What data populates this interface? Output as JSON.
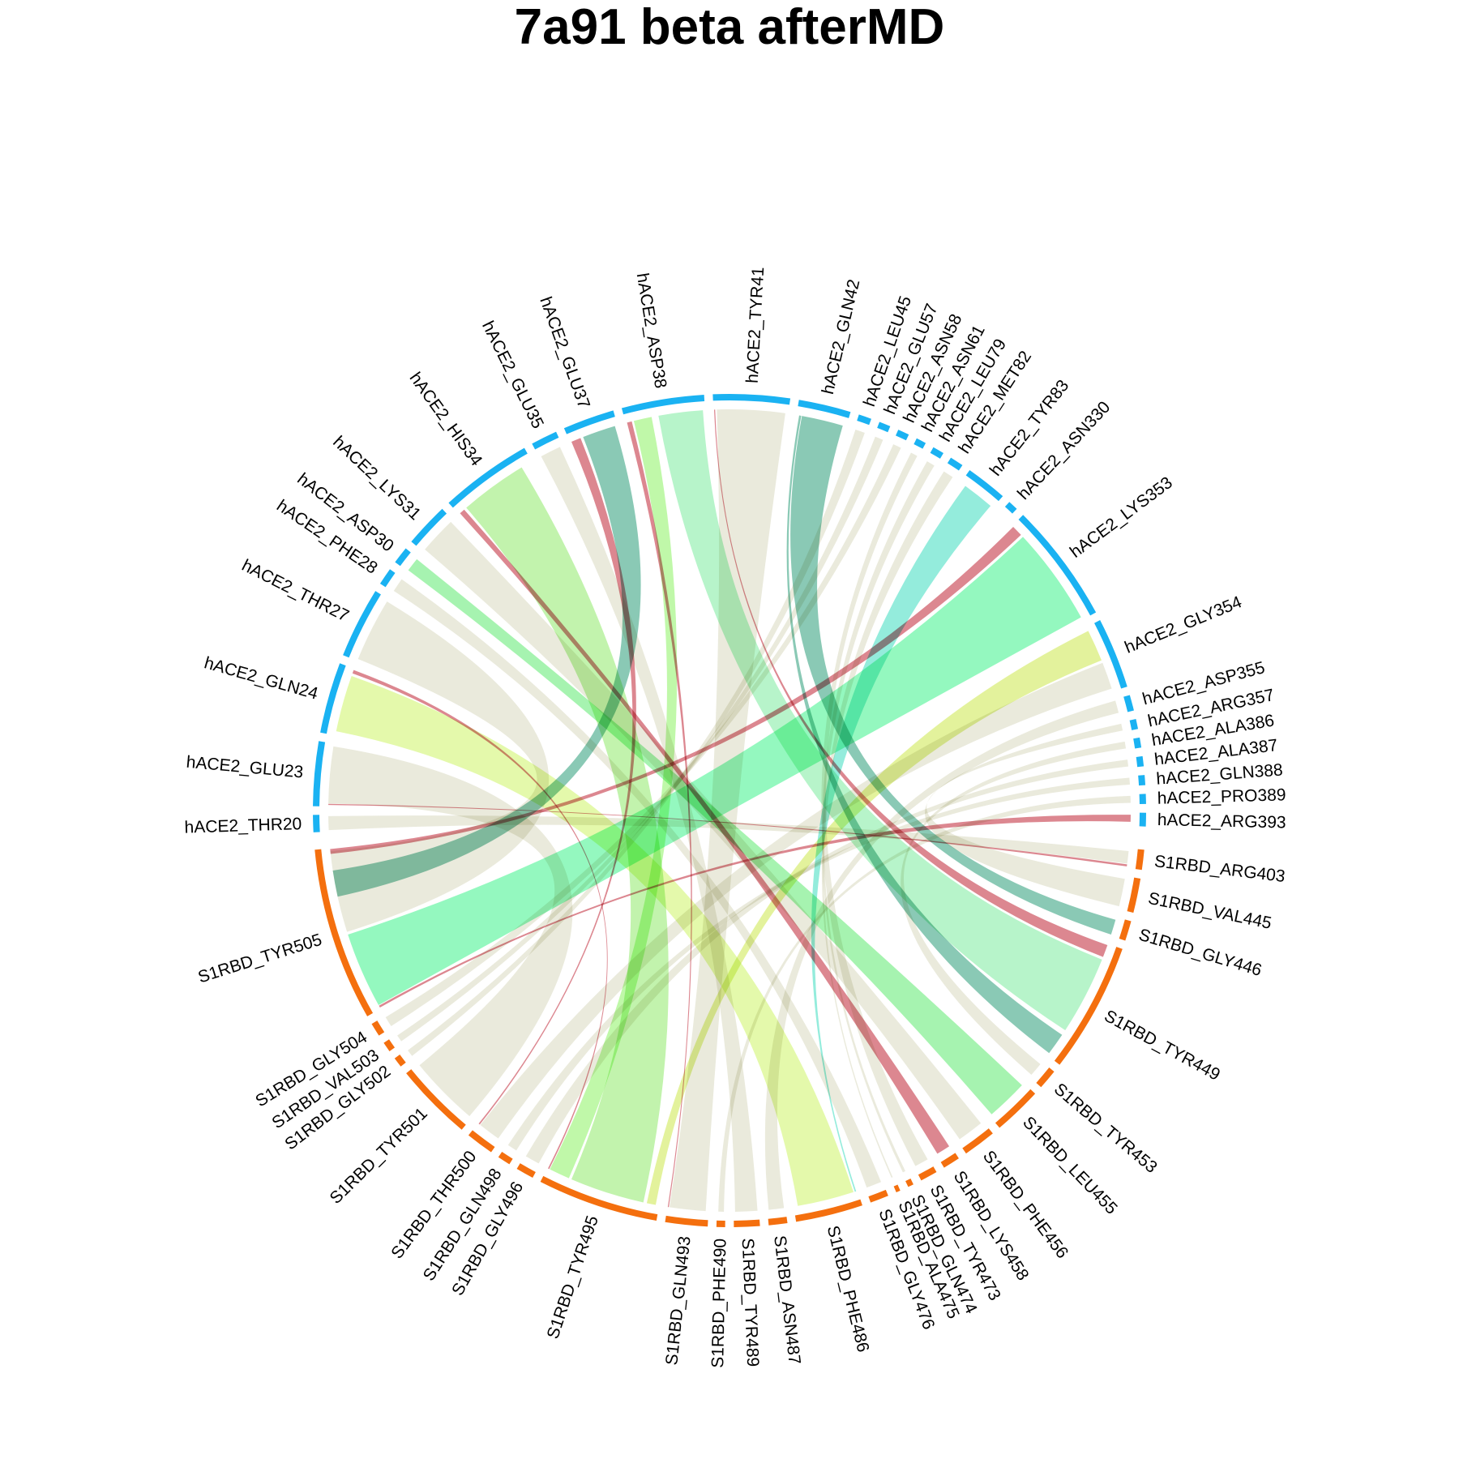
{
  "chart_data": {
    "type": "chord",
    "title": "7a91 beta afterMD",
    "group_colors": {
      "hACE2": "#1AB2F2",
      "S1RBD": "#F46F0E"
    },
    "default_link_color": "#E5E6D4",
    "nodes": [
      {
        "label": "hACE2_THR20",
        "group": "hACE2",
        "from_deg": 267.0,
        "to_deg": 269.4
      },
      {
        "label": "hACE2_GLU23",
        "group": "hACE2",
        "from_deg": 270.6,
        "to_deg": 279.6
      },
      {
        "label": "hACE2_GLN24",
        "group": "hACE2",
        "from_deg": 280.8,
        "to_deg": 290.7
      },
      {
        "label": "hACE2_THR27",
        "group": "hACE2",
        "from_deg": 291.9,
        "to_deg": 301.8
      },
      {
        "label": "hACE2_PHE28",
        "group": "hACE2",
        "from_deg": 303.0,
        "to_deg": 305.4
      },
      {
        "label": "hACE2_ASP30",
        "group": "hACE2",
        "from_deg": 306.6,
        "to_deg": 309.0
      },
      {
        "label": "hACE2_LYS31",
        "group": "hACE2",
        "from_deg": 310.2,
        "to_deg": 316.4
      },
      {
        "label": "hACE2_HIS34",
        "group": "hACE2",
        "from_deg": 317.6,
        "to_deg": 330.5
      },
      {
        "label": "hACE2_GLU35",
        "group": "hACE2",
        "from_deg": 331.7,
        "to_deg": 335.4
      },
      {
        "label": "hACE2_GLU37",
        "group": "hACE2",
        "from_deg": 336.6,
        "to_deg": 343.8
      },
      {
        "label": "hACE2_ASP38",
        "group": "hACE2",
        "from_deg": 345.0,
        "to_deg": 356.5
      },
      {
        "label": "hACE2_TYR41",
        "group": "hACE2",
        "from_deg": 357.7,
        "to_deg": 8.4
      },
      {
        "label": "hACE2_GLN42",
        "group": "hACE2",
        "from_deg": 9.6,
        "to_deg": 16.9
      },
      {
        "label": "hACE2_LEU45",
        "group": "hACE2",
        "from_deg": 18.1,
        "to_deg": 19.9
      },
      {
        "label": "hACE2_GLU57",
        "group": "hACE2",
        "from_deg": 21.1,
        "to_deg": 22.7
      },
      {
        "label": "hACE2_ASN58",
        "group": "hACE2",
        "from_deg": 23.9,
        "to_deg": 25.5
      },
      {
        "label": "hACE2_ASN61",
        "group": "hACE2",
        "from_deg": 26.7,
        "to_deg": 28.1
      },
      {
        "label": "hACE2_LEU79",
        "group": "hACE2",
        "from_deg": 29.3,
        "to_deg": 30.9
      },
      {
        "label": "hACE2_MET82",
        "group": "hACE2",
        "from_deg": 32.1,
        "to_deg": 34.0
      },
      {
        "label": "hACE2_TYR83",
        "group": "hACE2",
        "from_deg": 35.2,
        "to_deg": 41.0
      },
      {
        "label": "hACE2_ASN330",
        "group": "hACE2",
        "from_deg": 42.2,
        "to_deg": 43.6
      },
      {
        "label": "hACE2_LYS353",
        "group": "hACE2",
        "from_deg": 44.8,
        "to_deg": 61.6
      },
      {
        "label": "hACE2_GLY354",
        "group": "hACE2",
        "from_deg": 62.8,
        "to_deg": 72.7
      },
      {
        "label": "hACE2_ASP355",
        "group": "hACE2",
        "from_deg": 73.9,
        "to_deg": 76.1
      },
      {
        "label": "hACE2_ARG357",
        "group": "hACE2",
        "from_deg": 77.3,
        "to_deg": 78.7
      },
      {
        "label": "hACE2_ALA386",
        "group": "hACE2",
        "from_deg": 79.9,
        "to_deg": 81.3
      },
      {
        "label": "hACE2_ALA387",
        "group": "hACE2",
        "from_deg": 82.5,
        "to_deg": 83.9
      },
      {
        "label": "hACE2_GLN388",
        "group": "hACE2",
        "from_deg": 85.1,
        "to_deg": 86.5
      },
      {
        "label": "hACE2_PRO389",
        "group": "hACE2",
        "from_deg": 87.7,
        "to_deg": 89.1
      },
      {
        "label": "hACE2_ARG393",
        "group": "hACE2",
        "from_deg": 90.3,
        "to_deg": 92.2
      },
      {
        "label": "S1RBD_ARG403",
        "group": "S1RBD",
        "from_deg": 95.4,
        "to_deg": 98.2
      },
      {
        "label": "S1RBD_VAL445",
        "group": "S1RBD",
        "from_deg": 99.4,
        "to_deg": 104.2
      },
      {
        "label": "S1RBD_GLY446",
        "group": "S1RBD",
        "from_deg": 105.4,
        "to_deg": 108.2
      },
      {
        "label": "S1RBD_TYR449",
        "group": "S1RBD",
        "from_deg": 109.4,
        "to_deg": 127.6
      },
      {
        "label": "S1RBD_TYR453",
        "group": "S1RBD",
        "from_deg": 128.8,
        "to_deg": 131.6
      },
      {
        "label": "S1RBD_LEU455",
        "group": "S1RBD",
        "from_deg": 132.8,
        "to_deg": 139.6
      },
      {
        "label": "S1RBD_PHE456",
        "group": "S1RBD",
        "from_deg": 140.8,
        "to_deg": 145.4
      },
      {
        "label": "S1RBD_LYS458",
        "group": "S1RBD",
        "from_deg": 146.6,
        "to_deg": 149.0
      },
      {
        "label": "S1RBD_TYR473",
        "group": "S1RBD",
        "from_deg": 150.2,
        "to_deg": 152.6
      },
      {
        "label": "S1RBD_GLN474",
        "group": "S1RBD",
        "from_deg": 153.8,
        "to_deg": 154.6
      },
      {
        "label": "S1RBD_ALA475",
        "group": "S1RBD",
        "from_deg": 155.8,
        "to_deg": 156.4
      },
      {
        "label": "S1RBD_GLY476",
        "group": "S1RBD",
        "from_deg": 157.6,
        "to_deg": 160.2
      },
      {
        "label": "S1RBD_PHE486",
        "group": "S1RBD",
        "from_deg": 161.4,
        "to_deg": 170.8
      },
      {
        "label": "S1RBD_ASN487",
        "group": "S1RBD",
        "from_deg": 172.0,
        "to_deg": 174.6
      },
      {
        "label": "S1RBD_TYR489",
        "group": "S1RBD",
        "from_deg": 175.8,
        "to_deg": 179.4
      },
      {
        "label": "S1RBD_PHE490",
        "group": "S1RBD",
        "from_deg": 180.6,
        "to_deg": 181.8
      },
      {
        "label": "S1RBD_GLN493",
        "group": "S1RBD",
        "from_deg": 183.0,
        "to_deg": 188.9
      },
      {
        "label": "S1RBD_TYR495",
        "group": "S1RBD",
        "from_deg": 190.1,
        "to_deg": 207.0
      },
      {
        "label": "S1RBD_GLY496",
        "group": "S1RBD",
        "from_deg": 208.2,
        "to_deg": 210.7
      },
      {
        "label": "S1RBD_GLN498",
        "group": "S1RBD",
        "from_deg": 211.9,
        "to_deg": 213.7
      },
      {
        "label": "S1RBD_THR500",
        "group": "S1RBD",
        "from_deg": 214.9,
        "to_deg": 218.8
      },
      {
        "label": "S1RBD_TYR501",
        "group": "S1RBD",
        "from_deg": 220.0,
        "to_deg": 230.9
      },
      {
        "label": "S1RBD_GLY502",
        "group": "S1RBD",
        "from_deg": 232.1,
        "to_deg": 233.5
      },
      {
        "label": "S1RBD_VAL503",
        "group": "S1RBD",
        "from_deg": 234.7,
        "to_deg": 236.1
      },
      {
        "label": "S1RBD_GLY504",
        "group": "S1RBD",
        "from_deg": 237.3,
        "to_deg": 239.2
      },
      {
        "label": "S1RBD_TYR505",
        "group": "S1RBD",
        "from_deg": 240.4,
        "to_deg": 264.6
      }
    ],
    "links": [
      {
        "from": "hACE2_GLN24",
        "from_deg": [
          281.4,
          289.6
        ],
        "to": "S1RBD_PHE486",
        "to_deg": [
          162.0,
          170.2
        ],
        "color": "#CDF466"
      },
      {
        "from": "hACE2_HIS34",
        "from_deg": [
          319.0,
          328.8
        ],
        "to": "S1RBD_TYR495",
        "to_deg": [
          192.4,
          203.2
        ],
        "color": "#8FEA69"
      },
      {
        "from": "hACE2_ASP38",
        "from_deg": [
          349.8,
          356.2
        ],
        "to": "S1RBD_TYR449",
        "to_deg": [
          111.8,
          123.2
        ],
        "color": "#7BEB9E"
      },
      {
        "from": "hACE2_ASP38",
        "from_deg": [
          346.2,
          348.8
        ],
        "to": "S1RBD_TYR495",
        "to_deg": [
          203.6,
          206.6
        ],
        "color": "#8CF262"
      },
      {
        "from": "hACE2_GLN42",
        "from_deg": [
          10.4,
          16.4
        ],
        "to": "S1RBD_GLY446",
        "to_deg": [
          105.8,
          108.0
        ],
        "color": "#2A9C78"
      },
      {
        "from": "hACE2_GLN42",
        "from_deg": [
          10.0,
          10.3
        ],
        "to": "S1RBD_TYR449",
        "to_deg": [
          124.0,
          127.2
        ],
        "color": "#2A9C78"
      },
      {
        "from": "hACE2_TYR83",
        "from_deg": [
          36.0,
          40.6
        ],
        "to": "S1RBD_PHE486",
        "to_deg": [
          161.6,
          161.8
        ],
        "color": "#3CDDC0"
      },
      {
        "from": "hACE2_LYS353",
        "from_deg": [
          47.0,
          61.2
        ],
        "to": "S1RBD_TYR505",
        "to_deg": [
          241.0,
          252.0
        ],
        "color": "#3DF28A"
      },
      {
        "from": "hACE2_GLY354",
        "from_deg": [
          63.4,
          68.0
        ],
        "to": "S1RBD_TYR495",
        "to_deg": [
          190.6,
          191.9
        ],
        "color": "#CCE84A"
      },
      {
        "from": "hACE2_THR27",
        "from_deg": [
          292.2,
          301.4
        ],
        "to": "S1RBD_TYR505",
        "to_deg": [
          252.4,
          264.2
        ],
        "color": "#D8D8BF"
      },
      {
        "from": "hACE2_GLU37",
        "from_deg": [
          338.6,
          343.4
        ],
        "to": "S1RBD_TYR505",
        "to_deg": [
          257.6,
          261.4
        ],
        "color": "#2A9C78"
      },
      {
        "from": "hACE2_ASP30",
        "from_deg": [
          306.8,
          308.8
        ],
        "to": "S1RBD_LEU455",
        "to_deg": [
          133.2,
          139.2
        ],
        "color": "#5CEA6F"
      },
      {
        "from": "hACE2_LYS31",
        "from_deg": [
          310.6,
          316.0
        ],
        "to": "S1RBD_PHE456",
        "to_deg": [
          141.2,
          145.0
        ],
        "color": "#D8D8BF"
      },
      {
        "from": "hACE2_GLU23",
        "from_deg": [
          271.0,
          279.2
        ],
        "to": "S1RBD_TYR501",
        "to_deg": [
          220.4,
          230.6
        ],
        "color": "#D8D8BF"
      },
      {
        "from": "hACE2_TYR41",
        "from_deg": [
          358.2,
          8.0
        ],
        "to": "S1RBD_GLN493",
        "to_deg": [
          183.4,
          188.6
        ],
        "color": "#D8D8BF"
      },
      {
        "from": "hACE2_GLY354",
        "from_deg": [
          68.4,
          72.3
        ],
        "to": "S1RBD_THR500",
        "to_deg": [
          215.2,
          218.4
        ],
        "color": "#D8D8BF"
      },
      {
        "from": "hACE2_GLU35",
        "from_deg": [
          332.0,
          335.0
        ],
        "to": "S1RBD_TYR489",
        "to_deg": [
          176.0,
          179.2
        ],
        "color": "#D8D8BF"
      },
      {
        "from": "hACE2_ASP355",
        "from_deg": [
          74.1,
          75.9
        ],
        "to": "S1RBD_ASN487",
        "to_deg": [
          172.2,
          174.4
        ],
        "color": "#D8D8BF"
      },
      {
        "from": "hACE2_PHE28",
        "from_deg": [
          303.2,
          305.2
        ],
        "to": "S1RBD_GLY476",
        "to_deg": [
          157.8,
          160.0
        ],
        "color": "#D8D8BF"
      },
      {
        "from": "hACE2_LEU45",
        "from_deg": [
          18.3,
          19.7
        ],
        "to": "S1RBD_GLY502",
        "to_deg": [
          232.3,
          233.3
        ],
        "color": "#D8D8BF"
      },
      {
        "from": "hACE2_GLU57",
        "from_deg": [
          21.3,
          22.5
        ],
        "to": "S1RBD_VAL503",
        "to_deg": [
          234.9,
          235.9
        ],
        "color": "#D8D8BF"
      },
      {
        "from": "hACE2_ASN58",
        "from_deg": [
          24.1,
          25.3
        ],
        "to": "S1RBD_GLY504",
        "to_deg": [
          237.5,
          239.0
        ],
        "color": "#D8D8BF"
      },
      {
        "from": "hACE2_ASN61",
        "from_deg": [
          26.9,
          27.9
        ],
        "to": "S1RBD_TYR473",
        "to_deg": [
          150.4,
          152.4
        ],
        "color": "#D8D8BF"
      },
      {
        "from": "hACE2_LEU79",
        "from_deg": [
          29.5,
          30.7
        ],
        "to": "S1RBD_GLN474",
        "to_deg": [
          154.0,
          154.4
        ],
        "color": "#D8D8BF"
      },
      {
        "from": "hACE2_MET82",
        "from_deg": [
          32.3,
          33.8
        ],
        "to": "S1RBD_ALA475",
        "to_deg": [
          156.0,
          156.2
        ],
        "color": "#D8D8BF"
      },
      {
        "from": "hACE2_ARG357",
        "from_deg": [
          77.5,
          78.5
        ],
        "to": "S1RBD_VAL445",
        "to_deg": [
          99.8,
          103.8
        ],
        "color": "#D8D8BF"
      },
      {
        "from": "hACE2_ALA386",
        "from_deg": [
          80.1,
          81.1
        ],
        "to": "S1RBD_TYR453",
        "to_deg": [
          129.2,
          131.2
        ],
        "color": "#D8D8BF"
      },
      {
        "from": "hACE2_ALA387",
        "from_deg": [
          82.7,
          83.7
        ],
        "to": "S1RBD_GLY496",
        "to_deg": [
          208.4,
          210.5
        ],
        "color": "#D8D8BF"
      },
      {
        "from": "hACE2_GLN388",
        "from_deg": [
          85.3,
          86.3
        ],
        "to": "S1RBD_GLN498",
        "to_deg": [
          212.1,
          213.5
        ],
        "color": "#D8D8BF"
      },
      {
        "from": "hACE2_PRO389",
        "from_deg": [
          87.9,
          88.9
        ],
        "to": "S1RBD_PHE490",
        "to_deg": [
          180.8,
          181.6
        ],
        "color": "#D8D8BF"
      },
      {
        "from": "hACE2_THR20",
        "from_deg": [
          267.2,
          269.2
        ],
        "to": "S1RBD_ARG403",
        "to_deg": [
          95.8,
          97.6
        ],
        "color": "#D8D8BF"
      },
      {
        "from": "hACE2_ARG393",
        "from_deg": [
          90.6,
          91.6
        ],
        "to": "S1RBD_TYR505",
        "to_deg": [
          240.6,
          240.9
        ],
        "color": "#D05F6B"
      },
      {
        "from": "hACE2_GLU23",
        "from_deg": [
          270.8,
          270.95
        ],
        "to": "S1RBD_ARG403",
        "to_deg": [
          97.7,
          98.0
        ],
        "color": "#D05F6B"
      },
      {
        "from": "hACE2_HIS34",
        "from_deg": [
          317.8,
          318.6
        ],
        "to": "S1RBD_LYS458",
        "to_deg": [
          146.8,
          148.8
        ],
        "color": "#D05F6B"
      },
      {
        "from": "hACE2_GLU37",
        "from_deg": [
          336.8,
          338.2
        ],
        "to": "S1RBD_THR500",
        "to_deg": [
          218.5,
          218.7
        ],
        "color": "#D05F6B"
      },
      {
        "from": "hACE2_ASP38",
        "from_deg": [
          345.2,
          345.9
        ],
        "to": "S1RBD_GLN493",
        "to_deg": [
          188.7,
          188.85
        ],
        "color": "#D05F6B"
      },
      {
        "from": "hACE2_TYR41",
        "from_deg": [
          357.8,
          357.95
        ],
        "to": "S1RBD_TYR449",
        "to_deg": [
          109.6,
          111.4
        ],
        "color": "#D05F6B"
      },
      {
        "from": "hACE2_LYS353",
        "from_deg": [
          45.0,
          46.6
        ],
        "to": "S1RBD_TYR505",
        "to_deg": [
          263.8,
          264.5
        ],
        "color": "#D05F6B"
      },
      {
        "from": "hACE2_GLN24",
        "from_deg": [
          290.0,
          290.5
        ],
        "to": "S1RBD_TYR495",
        "to_deg": [
          206.7,
          206.9
        ],
        "color": "#D05F6B"
      }
    ]
  }
}
